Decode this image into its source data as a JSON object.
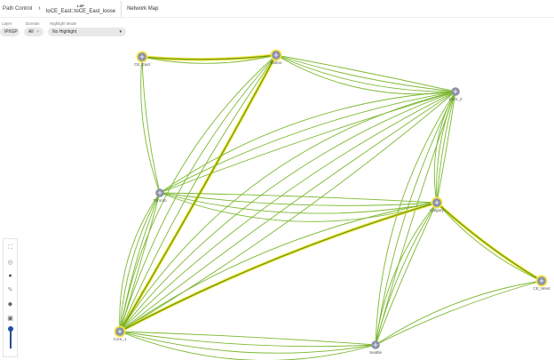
{
  "header": {
    "breadcrumb_root": "Path Control",
    "lsp_label": "LSP",
    "lsp_name": "toCE_East::toCE_East_loose",
    "tab": "Network Map"
  },
  "filters": {
    "layer_label": "Layer",
    "layer_value": "IP/IGP",
    "domain_label": "Domain",
    "domain_value": "All",
    "highlight_label": "Highlight Mode",
    "highlight_value": "No Highlight"
  },
  "toolbar": [
    "fit-icon",
    "zoom-icon",
    "node-icon",
    "edit-link-icon",
    "pin-icon",
    "square-icon"
  ],
  "zoom_level": 0.7,
  "colors": {
    "link": "#7cb82f",
    "highlight": "#f5e642",
    "node": "#8a90a8"
  },
  "nodes": [
    {
      "id": "CE_East",
      "label": "CE_East",
      "highlighted": true
    },
    {
      "id": "Bolton",
      "label": "Bolton",
      "highlighted": true
    },
    {
      "id": "Core_2",
      "label": "Core_2",
      "highlighted": false
    },
    {
      "id": "Toronto",
      "label": "Toronto",
      "highlighted": false
    },
    {
      "id": "Calgary",
      "label": "Calgary",
      "highlighted": true
    },
    {
      "id": "CE_West",
      "label": "CE_West",
      "highlighted": true
    },
    {
      "id": "Core_1",
      "label": "Core_1",
      "highlighted": true
    },
    {
      "id": "Seattle",
      "label": "Seattle",
      "highlighted": false
    }
  ],
  "links": [
    {
      "a": "CE_East",
      "b": "Bolton",
      "count": 2,
      "highlighted": true
    },
    {
      "a": "CE_East",
      "b": "Toronto",
      "count": 2
    },
    {
      "a": "Bolton",
      "b": "Core_2",
      "count": 4
    },
    {
      "a": "Bolton",
      "b": "Core_1",
      "count": 4,
      "highlighted": true
    },
    {
      "a": "Core_2",
      "b": "Calgary",
      "count": 4
    },
    {
      "a": "Core_2",
      "b": "Core_1",
      "count": 5
    },
    {
      "a": "Core_2",
      "b": "Toronto",
      "count": 3
    },
    {
      "a": "Core_2",
      "b": "Seattle",
      "count": 3
    },
    {
      "a": "Toronto",
      "b": "Calgary",
      "count": 4
    },
    {
      "a": "Toronto",
      "b": "Core_1",
      "count": 4
    },
    {
      "a": "Calgary",
      "b": "Core_1",
      "count": 2,
      "highlighted": true
    },
    {
      "a": "Calgary",
      "b": "CE_West",
      "count": 2,
      "highlighted": true
    },
    {
      "a": "Calgary",
      "b": "Seattle",
      "count": 3
    },
    {
      "a": "Core_1",
      "b": "Seattle",
      "count": 4
    },
    {
      "a": "CE_West",
      "b": "Seattle",
      "count": 2
    }
  ]
}
